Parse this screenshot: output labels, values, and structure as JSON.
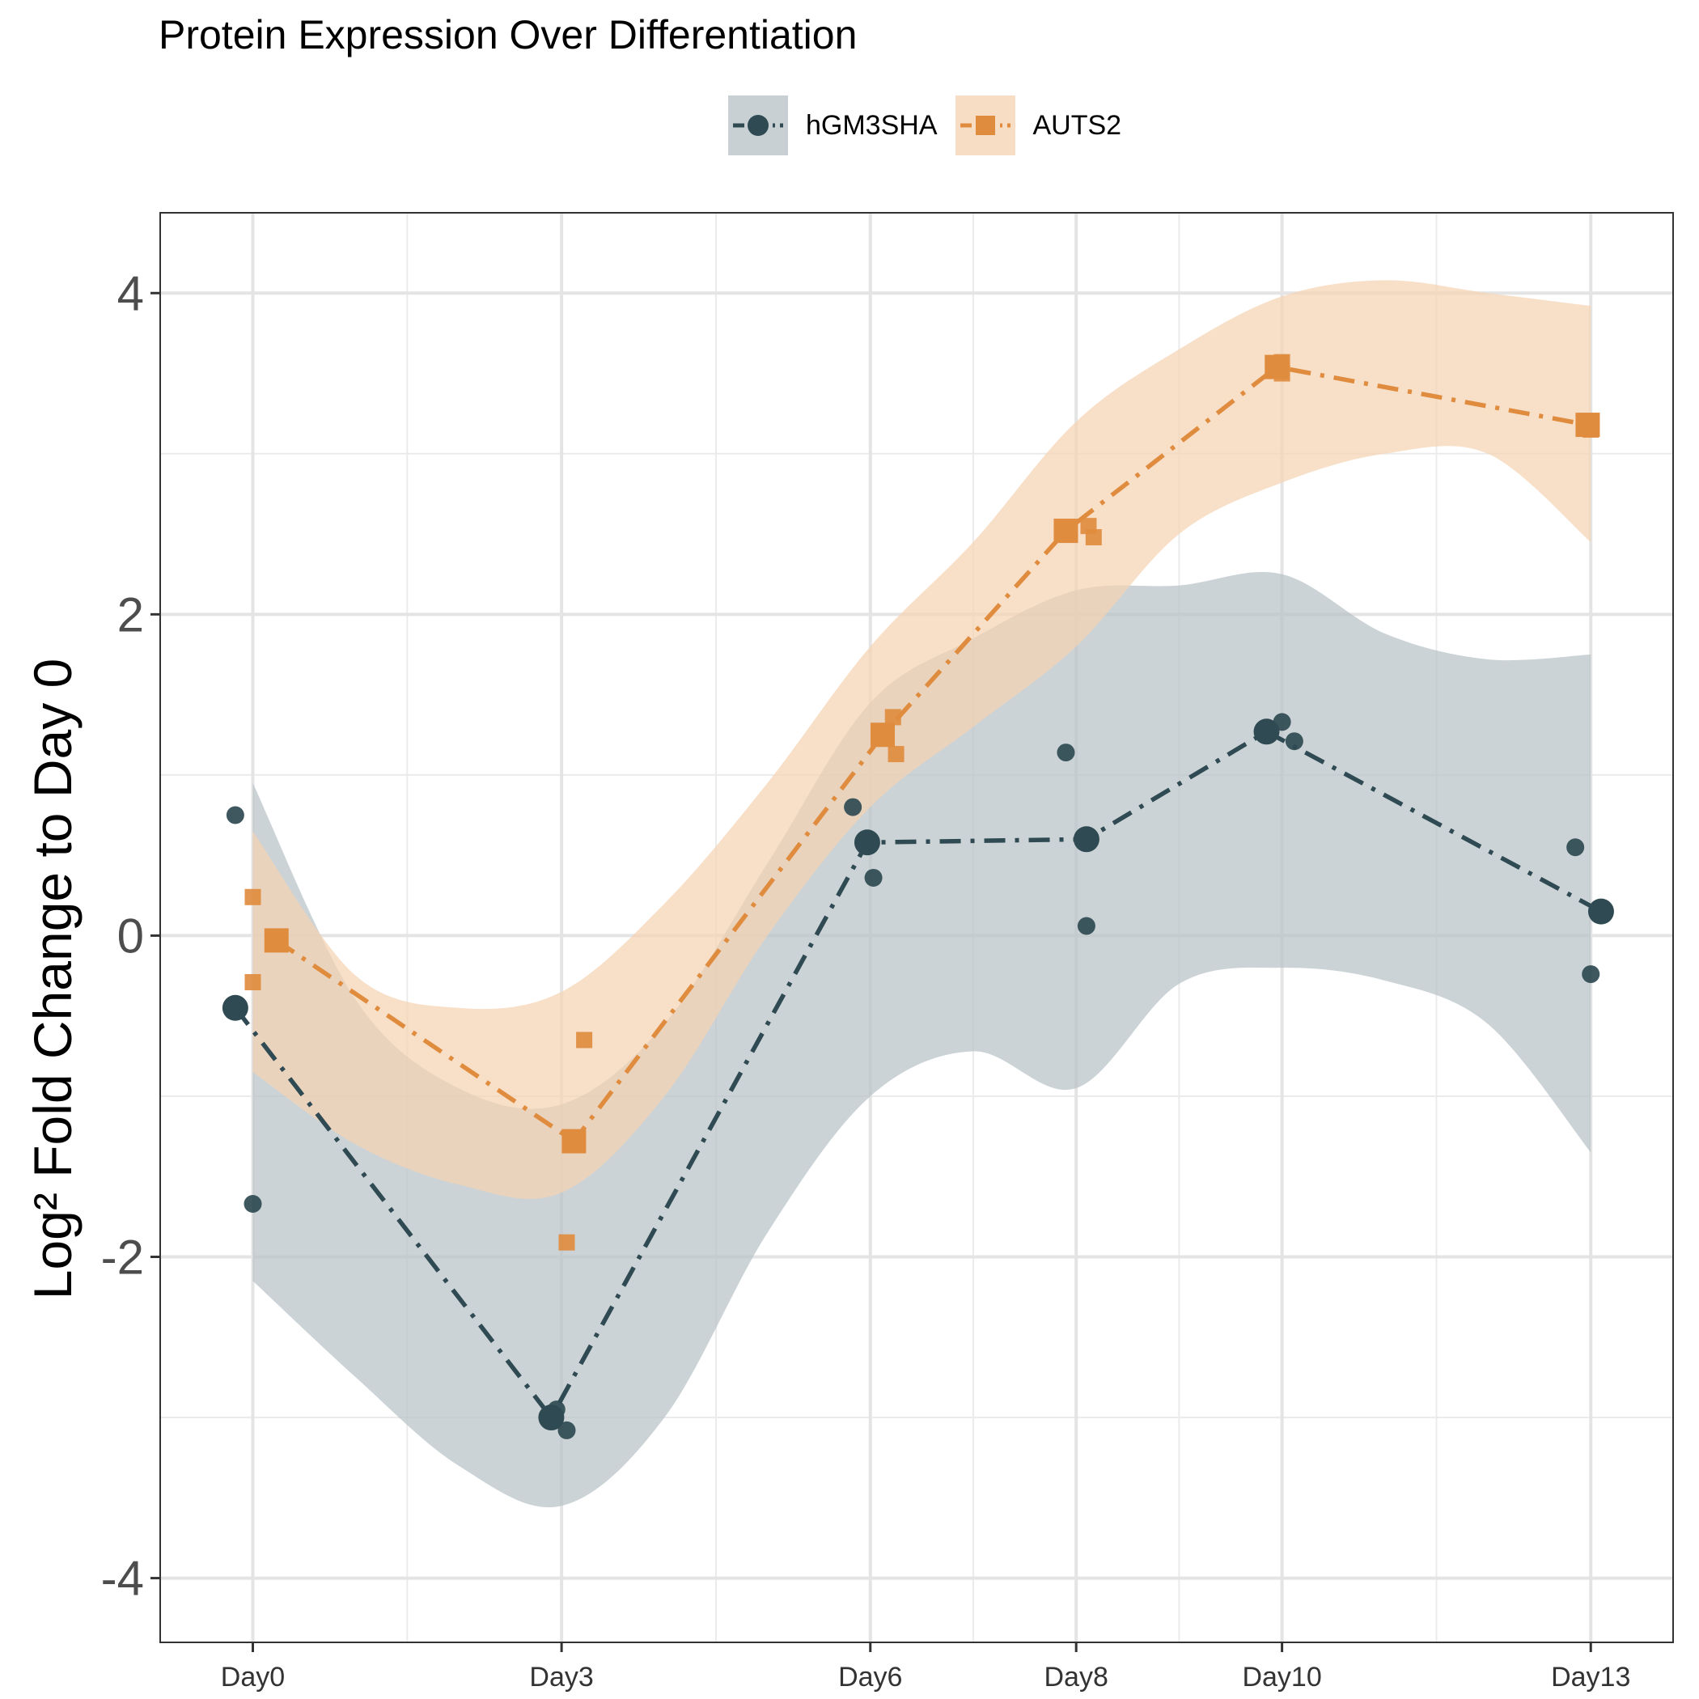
{
  "chart_data": {
    "type": "line",
    "title": "Protein Expression Over Differentiation",
    "ylabel": "Log² Fold Change to Day 0",
    "xlabel": "",
    "categories": [
      "Day0",
      "Day3",
      "Day6",
      "Day8",
      "Day10",
      "Day13"
    ],
    "x_positions": [
      0,
      3,
      6,
      8,
      10,
      13
    ],
    "ylim": [
      -4.4,
      4.5
    ],
    "xlim": [
      -0.9,
      13.8
    ],
    "yticks": [
      -4,
      -2,
      0,
      2,
      4
    ],
    "ytick_labels": [
      "-4",
      "-2",
      "0",
      "2",
      "4"
    ],
    "grid": true,
    "legend_position": "top",
    "series": [
      {
        "name": "hGM3SHA",
        "color": "#2f4a52",
        "marker": "circle",
        "line_style": "dashdot",
        "mean": [
          {
            "x": -0.17,
            "y": -0.45
          },
          {
            "x": 2.9,
            "y": -3.0
          },
          {
            "x": 5.97,
            "y": 0.58
          },
          {
            "x": 8.1,
            "y": 0.6
          },
          {
            "x": 9.85,
            "y": 1.27
          },
          {
            "x": 13.1,
            "y": 0.15
          }
        ],
        "replicates": [
          {
            "x": -0.17,
            "y": 0.75
          },
          {
            "x": 0.0,
            "y": -1.67
          },
          {
            "x": 2.95,
            "y": -2.95
          },
          {
            "x": 3.05,
            "y": -3.08
          },
          {
            "x": 5.83,
            "y": 0.8
          },
          {
            "x": 6.03,
            "y": 0.36
          },
          {
            "x": 7.9,
            "y": 1.14
          },
          {
            "x": 8.1,
            "y": 0.06
          },
          {
            "x": 10.0,
            "y": 1.33
          },
          {
            "x": 10.12,
            "y": 1.21
          },
          {
            "x": 12.85,
            "y": 0.55
          },
          {
            "x": 13.0,
            "y": -0.24
          }
        ],
        "ribbon": {
          "x": [
            0,
            1,
            2,
            3,
            4,
            5,
            6,
            7,
            8,
            9,
            10,
            11,
            12,
            13
          ],
          "upper": [
            0.95,
            -0.4,
            -0.95,
            -1.05,
            -0.55,
            0.45,
            1.45,
            1.85,
            2.15,
            2.18,
            2.25,
            1.88,
            1.72,
            1.75
          ],
          "lower": [
            -2.15,
            -2.75,
            -3.3,
            -3.55,
            -3.0,
            -1.85,
            -1.0,
            -0.72,
            -0.95,
            -0.3,
            -0.2,
            -0.28,
            -0.55,
            -1.35
          ]
        }
      },
      {
        "name": "AUTS2",
        "color": "#e08c3f",
        "marker": "square",
        "line_style": "dashdot",
        "mean": [
          {
            "x": 0.23,
            "y": -0.03
          },
          {
            "x": 3.12,
            "y": -1.28
          },
          {
            "x": 6.12,
            "y": 1.25
          },
          {
            "x": 7.9,
            "y": 2.52
          },
          {
            "x": 9.95,
            "y": 3.54
          },
          {
            "x": 12.97,
            "y": 3.18
          }
        ],
        "replicates": [
          {
            "x": 0.0,
            "y": 0.24
          },
          {
            "x": 0.0,
            "y": -0.29
          },
          {
            "x": 3.22,
            "y": -0.65
          },
          {
            "x": 3.05,
            "y": -1.91
          },
          {
            "x": 6.22,
            "y": 1.36
          },
          {
            "x": 6.25,
            "y": 1.13
          },
          {
            "x": 8.12,
            "y": 2.55
          },
          {
            "x": 8.17,
            "y": 2.48
          },
          {
            "x": 10.0,
            "y": 3.57
          },
          {
            "x": 10.0,
            "y": 3.5
          },
          {
            "x": 13.0,
            "y": 3.15
          },
          {
            "x": 12.95,
            "y": 3.2
          }
        ],
        "ribbon": {
          "x": [
            0,
            1,
            2,
            3,
            4,
            5,
            6,
            7,
            8,
            9,
            10,
            11,
            12,
            13
          ],
          "upper": [
            0.65,
            -0.25,
            -0.45,
            -0.35,
            0.2,
            0.95,
            1.8,
            2.45,
            3.2,
            3.65,
            3.98,
            4.08,
            4.0,
            3.92
          ],
          "lower": [
            -0.85,
            -1.3,
            -1.55,
            -1.6,
            -1.0,
            0.0,
            0.8,
            1.3,
            1.8,
            2.5,
            2.82,
            3.0,
            3.0,
            2.45
          ]
        }
      }
    ]
  }
}
